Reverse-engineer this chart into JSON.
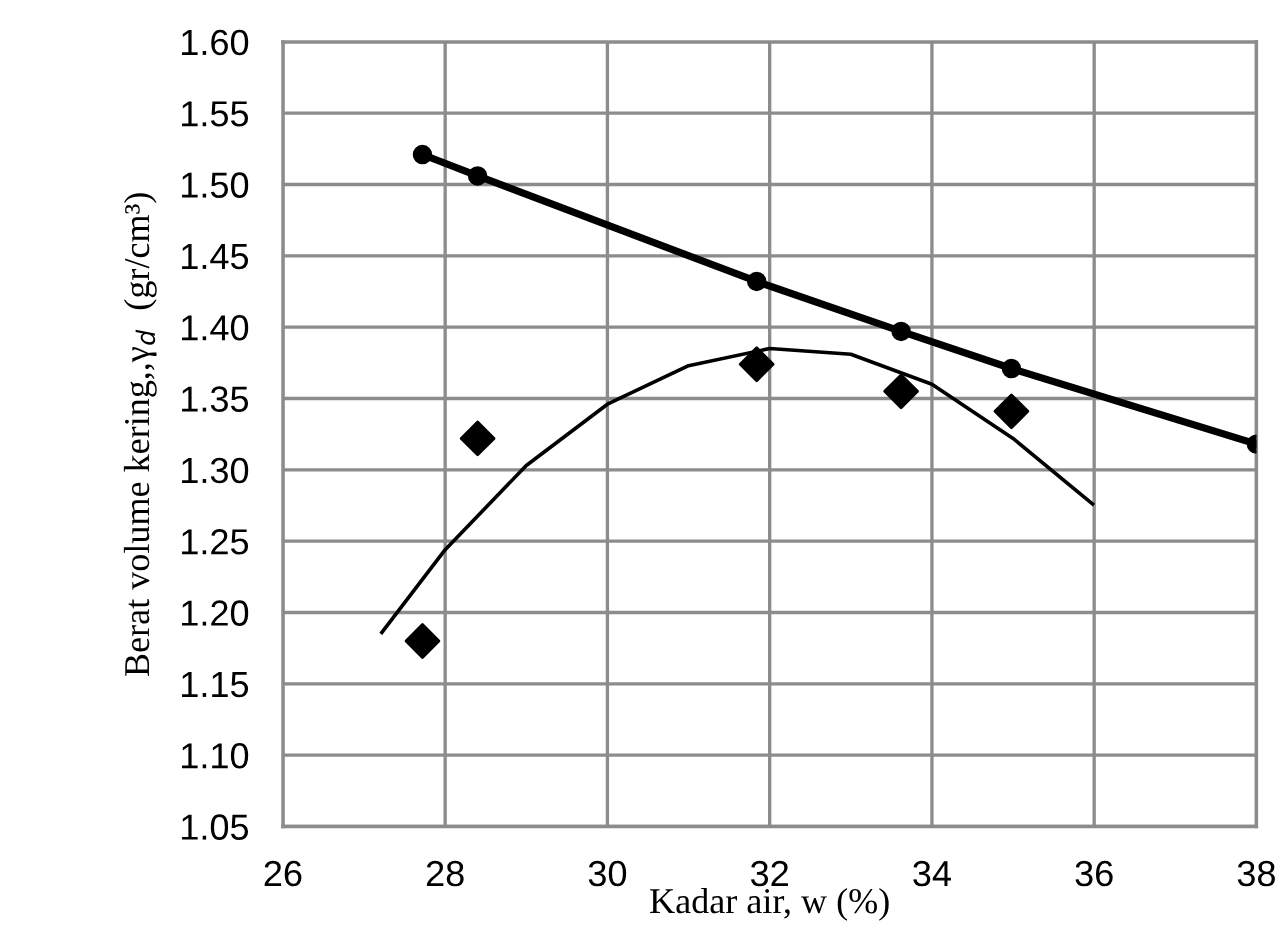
{
  "chart_data": {
    "type": "line",
    "xlabel": "Kadar air, w (%)",
    "ylabel": "Berat volume kering,,γ$_{d}$  (gr/cm³)",
    "xlim": [
      26,
      38
    ],
    "xticks": [
      26,
      28,
      30,
      32,
      34,
      36,
      38
    ],
    "ylim": [
      1.05,
      1.6
    ],
    "yticks": [
      1.05,
      {
        "value": 1.1,
        "label": "1.10"
      },
      1.15,
      {
        "value": 1.2,
        "label": "1.20"
      },
      1.25,
      {
        "value": 1.3,
        "label": "1.30"
      },
      1.35,
      {
        "value": 1.4,
        "label": "1.40"
      },
      1.45,
      {
        "value": 1.5,
        "label": "1.50"
      },
      1.55,
      {
        "value": 1.6,
        "label": "1.60"
      }
    ],
    "grid": true,
    "series": [
      {
        "color": "#000000",
        "marker": "circle",
        "x": [
          27.72,
          28.4,
          31.84,
          33.62,
          34.98,
          38.0
        ],
        "values": [
          1.521,
          1.506,
          1.432,
          1.397,
          1.371,
          1.318
        ]
      },
      {
        "type": "scatter",
        "color": "#000000",
        "marker": "diamond",
        "x": [
          27.72,
          28.4,
          31.84,
          33.62,
          34.98
        ],
        "values": [
          1.18,
          1.322,
          1.374,
          1.355,
          1.341
        ]
      },
      {
        "color": "#000000",
        "marker": "none",
        "x": [
          27.22,
          28,
          29,
          30,
          31,
          32,
          33,
          34,
          35,
          35.98
        ],
        "values": [
          1.186,
          1.244,
          1.303,
          1.346,
          1.373,
          1.385,
          1.381,
          1.36,
          1.322,
          1.276
        ]
      }
    ]
  }
}
